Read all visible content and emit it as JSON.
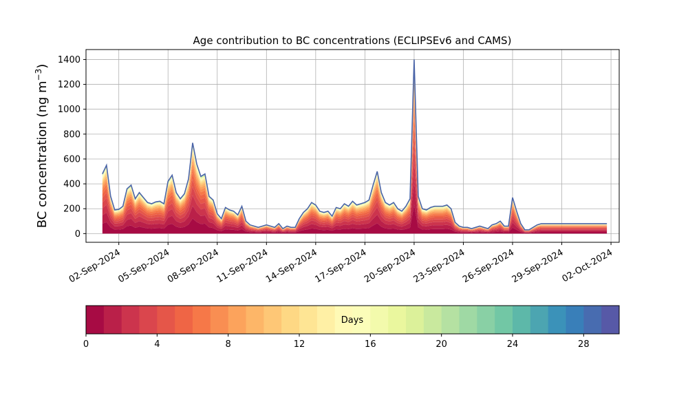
{
  "chart_data": {
    "type": "area",
    "stacked": true,
    "title": "Age contribution to BC concentrations (ECLIPSEv6 and CAMS)",
    "ylabel": "BC concentration (ng m",
    "ylabel_sup": "−3",
    "ylabel_close": ")",
    "xlabel": "",
    "ylim": [
      -70,
      1480
    ],
    "xlim": [
      "2024-08-31T00:00",
      "2024-10-02T12:00"
    ],
    "grid": true,
    "yticks": [
      0,
      200,
      400,
      600,
      800,
      1000,
      1200,
      1400
    ],
    "xticks": [
      {
        "date": "2024-09-02",
        "label": "02-Sep-2024"
      },
      {
        "date": "2024-09-05",
        "label": "05-Sep-2024"
      },
      {
        "date": "2024-09-08",
        "label": "08-Sep-2024"
      },
      {
        "date": "2024-09-11",
        "label": "11-Sep-2024"
      },
      {
        "date": "2024-09-14",
        "label": "14-Sep-2024"
      },
      {
        "date": "2024-09-17",
        "label": "17-Sep-2024"
      },
      {
        "date": "2024-09-20",
        "label": "20-Sep-2024"
      },
      {
        "date": "2024-09-23",
        "label": "23-Sep-2024"
      },
      {
        "date": "2024-09-26",
        "label": "26-Sep-2024"
      },
      {
        "date": "2024-09-29",
        "label": "29-Sep-2024"
      },
      {
        "date": "2024-10-02",
        "label": "02-Oct-2024"
      }
    ],
    "age_bins_days": 30,
    "colormap": "Spectral",
    "colormap_stops": [
      "#9e0142",
      "#d53e4f",
      "#f46d43",
      "#fdae61",
      "#fee08b",
      "#ffffbf",
      "#e6f598",
      "#abdda4",
      "#66c2a5",
      "#3288bd",
      "#5e4fa2"
    ],
    "total_series": {
      "name": "total",
      "x": [
        "2024-09-01T00:00",
        "2024-09-01T06:00",
        "2024-09-01T12:00",
        "2024-09-01T18:00",
        "2024-09-02T00:00",
        "2024-09-02T06:00",
        "2024-09-02T12:00",
        "2024-09-02T18:00",
        "2024-09-03T00:00",
        "2024-09-03T06:00",
        "2024-09-03T12:00",
        "2024-09-03T18:00",
        "2024-09-04T00:00",
        "2024-09-04T06:00",
        "2024-09-04T12:00",
        "2024-09-04T18:00",
        "2024-09-05T00:00",
        "2024-09-05T06:00",
        "2024-09-05T12:00",
        "2024-09-05T18:00",
        "2024-09-06T00:00",
        "2024-09-06T06:00",
        "2024-09-06T12:00",
        "2024-09-06T18:00",
        "2024-09-07T00:00",
        "2024-09-07T06:00",
        "2024-09-07T12:00",
        "2024-09-07T18:00",
        "2024-09-08T00:00",
        "2024-09-08T06:00",
        "2024-09-08T12:00",
        "2024-09-08T18:00",
        "2024-09-09T00:00",
        "2024-09-09T06:00",
        "2024-09-09T12:00",
        "2024-09-09T18:00",
        "2024-09-10T00:00",
        "2024-09-10T06:00",
        "2024-09-10T12:00",
        "2024-09-10T18:00",
        "2024-09-11T00:00",
        "2024-09-11T06:00",
        "2024-09-11T12:00",
        "2024-09-11T18:00",
        "2024-09-12T00:00",
        "2024-09-12T06:00",
        "2024-09-12T12:00",
        "2024-09-12T18:00",
        "2024-09-13T00:00",
        "2024-09-13T06:00",
        "2024-09-13T12:00",
        "2024-09-13T18:00",
        "2024-09-14T00:00",
        "2024-09-14T06:00",
        "2024-09-14T12:00",
        "2024-09-14T18:00",
        "2024-09-15T00:00",
        "2024-09-15T06:00",
        "2024-09-15T12:00",
        "2024-09-15T18:00",
        "2024-09-16T00:00",
        "2024-09-16T06:00",
        "2024-09-16T12:00",
        "2024-09-16T18:00",
        "2024-09-17T00:00",
        "2024-09-17T06:00",
        "2024-09-17T12:00",
        "2024-09-17T18:00",
        "2024-09-18T00:00",
        "2024-09-18T06:00",
        "2024-09-18T12:00",
        "2024-09-18T18:00",
        "2024-09-19T00:00",
        "2024-09-19T06:00",
        "2024-09-19T12:00",
        "2024-09-19T18:00",
        "2024-09-20T00:00",
        "2024-09-20T06:00",
        "2024-09-20T12:00",
        "2024-09-20T18:00",
        "2024-09-21T00:00",
        "2024-09-21T06:00",
        "2024-09-21T12:00",
        "2024-09-21T18:00",
        "2024-09-22T00:00",
        "2024-09-22T06:00",
        "2024-09-22T12:00",
        "2024-09-22T18:00",
        "2024-09-23T00:00",
        "2024-09-23T06:00",
        "2024-09-23T12:00",
        "2024-09-23T18:00",
        "2024-09-24T00:00",
        "2024-09-24T06:00",
        "2024-09-24T12:00",
        "2024-09-24T18:00",
        "2024-09-25T00:00",
        "2024-09-25T06:00",
        "2024-09-25T12:00",
        "2024-09-25T18:00",
        "2024-09-26T00:00",
        "2024-09-26T06:00",
        "2024-09-26T12:00",
        "2024-09-26T18:00",
        "2024-09-27T00:00",
        "2024-09-27T06:00",
        "2024-09-27T12:00",
        "2024-09-27T18:00",
        "2024-09-28T00:00",
        "2024-09-28T06:00",
        "2024-09-28T12:00",
        "2024-09-28T18:00",
        "2024-09-29T00:00",
        "2024-09-29T06:00",
        "2024-09-29T12:00",
        "2024-09-29T18:00",
        "2024-09-30T00:00",
        "2024-09-30T06:00",
        "2024-09-30T12:00",
        "2024-09-30T18:00",
        "2024-10-01T00:00",
        "2024-10-01T06:00",
        "2024-10-01T12:00",
        "2024-10-01T18:00"
      ],
      "values": [
        480,
        550,
        300,
        190,
        195,
        220,
        360,
        390,
        280,
        330,
        290,
        250,
        240,
        255,
        260,
        240,
        420,
        470,
        330,
        280,
        320,
        440,
        730,
        560,
        460,
        480,
        300,
        270,
        160,
        120,
        210,
        190,
        180,
        150,
        220,
        100,
        70,
        60,
        50,
        60,
        70,
        60,
        50,
        80,
        40,
        60,
        50,
        50,
        120,
        170,
        200,
        250,
        230,
        180,
        170,
        180,
        140,
        210,
        200,
        240,
        220,
        260,
        230,
        240,
        250,
        270,
        390,
        500,
        330,
        250,
        230,
        250,
        200,
        180,
        220,
        280,
        1400,
        300,
        200,
        190,
        210,
        220,
        220,
        220,
        230,
        200,
        90,
        60,
        50,
        50,
        40,
        50,
        60,
        50,
        40,
        70,
        80,
        100,
        60,
        60,
        290,
        180,
        80,
        30,
        30,
        50,
        70,
        80,
        80,
        80,
        80,
        80,
        80,
        80,
        80,
        80,
        80,
        80,
        80,
        80,
        80,
        80,
        80,
        80
      ],
      "young_fraction_note": ""
    },
    "colorbar": {
      "label": "Days",
      "min": 0,
      "max": 30,
      "ticks": [
        0,
        4,
        8,
        12,
        16,
        20,
        24,
        28
      ]
    }
  }
}
